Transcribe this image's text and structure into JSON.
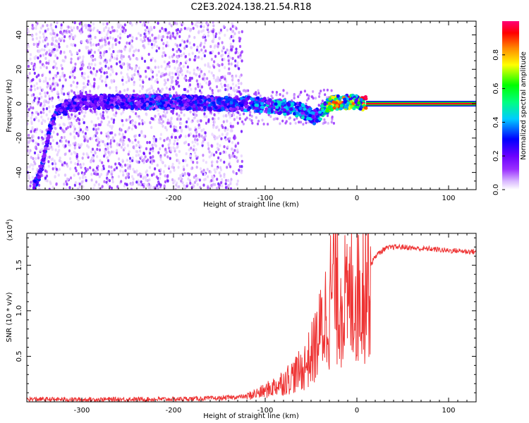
{
  "title": "C2E3.2024.138.21.54.R18",
  "colors": {
    "snr_line": "#ee3333",
    "colormap": [
      "#ffffff",
      "#d9b8ff",
      "#9b30ff",
      "#6a00ff",
      "#0000ff",
      "#00ccff",
      "#00ff7f",
      "#00ff00",
      "#ffff00",
      "#ff8800",
      "#ff0000",
      "#ff0077"
    ]
  },
  "chart_data": [
    {
      "type": "heatmap",
      "xlabel": "Height of straight line (km)",
      "ylabel": "Frequency (Hz)",
      "xlim": [
        -360,
        130
      ],
      "ylim": [
        -50,
        48
      ],
      "x_ticks": [
        -300,
        -200,
        -100,
        0,
        100
      ],
      "y_ticks": [
        -40,
        -20,
        0,
        20,
        40
      ],
      "colorbar": {
        "label": "Normalized spectral amplitude",
        "range": [
          0,
          1
        ],
        "ticks": [
          "0.0",
          "0.2",
          "0.4",
          "0.6",
          "0.8"
        ]
      },
      "ridge": [
        {
          "x": -352,
          "y": -48,
          "amp": 0.35
        },
        {
          "x": -345,
          "y": -40,
          "amp": 0.3
        },
        {
          "x": -340,
          "y": -28,
          "amp": 0.3
        },
        {
          "x": -335,
          "y": -15,
          "amp": 0.3
        },
        {
          "x": -328,
          "y": -4,
          "amp": 0.3
        },
        {
          "x": -300,
          "y": 1,
          "amp": 0.25
        },
        {
          "x": -250,
          "y": 1,
          "amp": 0.3
        },
        {
          "x": -200,
          "y": 1,
          "amp": 0.32
        },
        {
          "x": -150,
          "y": 0,
          "amp": 0.3
        },
        {
          "x": -120,
          "y": 0,
          "amp": 0.35
        },
        {
          "x": -100,
          "y": -1,
          "amp": 0.4
        },
        {
          "x": -80,
          "y": -2,
          "amp": 0.45
        },
        {
          "x": -60,
          "y": -4,
          "amp": 0.4
        },
        {
          "x": -45,
          "y": -8,
          "amp": 0.35
        },
        {
          "x": -30,
          "y": 0,
          "amp": 0.7
        },
        {
          "x": -15,
          "y": 1,
          "amp": 0.85
        },
        {
          "x": 0,
          "y": 1,
          "amp": 0.7
        },
        {
          "x": 10,
          "y": 0,
          "amp": 0.95
        },
        {
          "x": 60,
          "y": 0,
          "amp": 0.95
        },
        {
          "x": 128,
          "y": 0,
          "amp": 0.95
        }
      ]
    },
    {
      "type": "line",
      "xlabel": "Height of straight line (km)",
      "ylabel": "SNR (10 * v/v)",
      "y_multiplier": "(x10",
      "y_multiplier_exp": "4",
      "y_multiplier_close": ")",
      "xlim": [
        -360,
        130
      ],
      "ylim": [
        0,
        18500
      ],
      "x_ticks": [
        -300,
        -200,
        -100,
        0,
        100
      ],
      "y_ticks": [
        {
          "value": 5000,
          "label": "0.5"
        },
        {
          "value": 10000,
          "label": "1.0"
        },
        {
          "value": 15000,
          "label": "1.5"
        }
      ],
      "series": [
        {
          "x": [
            -360,
            -300,
            -250,
            -200,
            -150,
            -120,
            -100,
            -80,
            -60,
            -50,
            -40,
            -30,
            -25,
            -20,
            -15,
            -10,
            -5,
            0,
            5,
            10,
            20,
            30,
            40,
            50,
            60,
            70,
            80,
            90,
            100,
            110,
            120,
            128
          ],
          "values": [
            300,
            250,
            280,
            300,
            400,
            600,
            1200,
            2200,
            3500,
            5000,
            7500,
            11000,
            13500,
            11000,
            12000,
            10000,
            12500,
            12000,
            12500,
            14000,
            16000,
            16800,
            17000,
            17000,
            16900,
            16800,
            16800,
            16700,
            16600,
            16600,
            16500,
            16500
          ],
          "noisy": true
        }
      ]
    }
  ]
}
